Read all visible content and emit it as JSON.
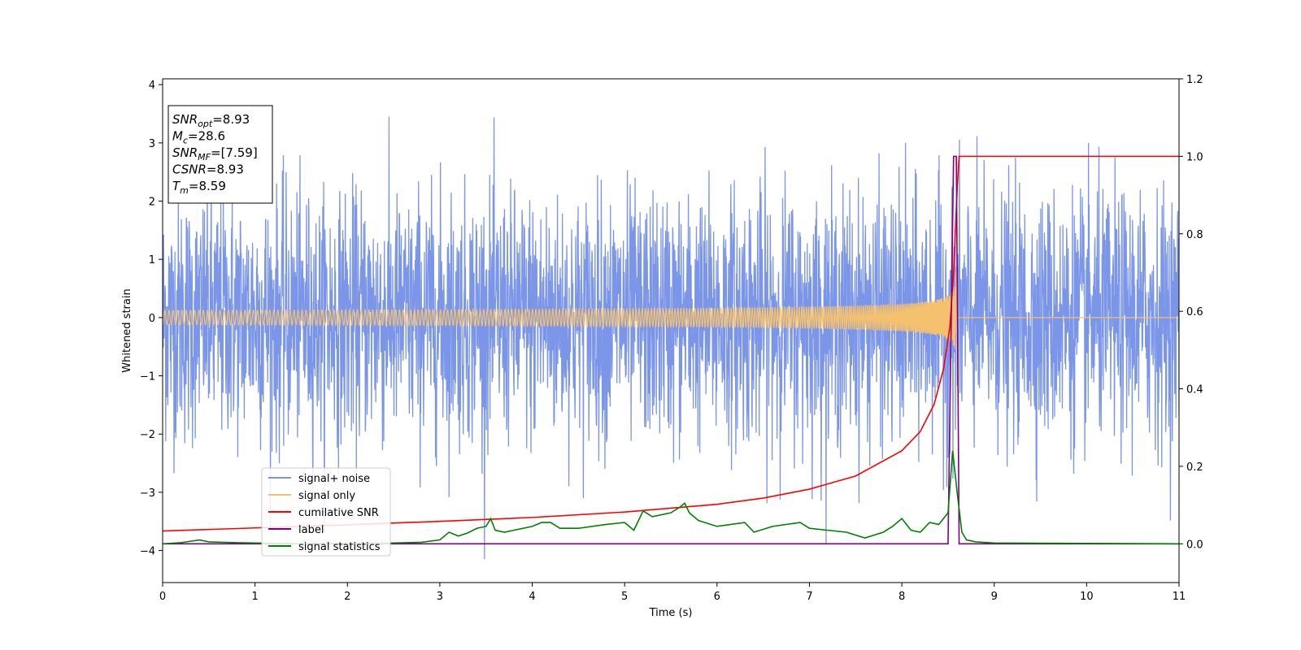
{
  "chart_data": {
    "type": "line",
    "xlabel": "Time (s)",
    "ylabel": "Whitened strain",
    "xlim": [
      0,
      11
    ],
    "ylim": [
      -4.55,
      4.1
    ],
    "y2lim": [
      -0.1,
      1.2
    ],
    "xticks": [
      0,
      1,
      2,
      3,
      4,
      5,
      6,
      7,
      8,
      9,
      10,
      11
    ],
    "yticks": [
      -4,
      -3,
      -2,
      -1,
      0,
      1,
      2,
      3,
      4
    ],
    "y2ticks": [
      0.0,
      0.2,
      0.4,
      0.6,
      0.8,
      1.0,
      1.2
    ],
    "grid": false,
    "legend_position": "lower-left",
    "annotation": {
      "lines": [
        {
          "main": "SNR",
          "sub": "opt",
          "value": "=8.93"
        },
        {
          "main": "M",
          "sub": "c",
          "value": "=28.6"
        },
        {
          "main": "SNR",
          "sub": "MF",
          "value": "=[7.59]"
        },
        {
          "main": "CSNR",
          "sub": "",
          "value": "=8.93"
        },
        {
          "main": "T",
          "sub": "m",
          "value": "=8.59"
        }
      ]
    },
    "merger_time": 8.59,
    "series": [
      {
        "name": "signal+ noise",
        "axis": "left",
        "color": "#7b96e8",
        "noise_std": 1.05,
        "description_points": {
          "x": [
            0,
            11
          ],
          "envelope_max": 3.7,
          "envelope_min": -4.15
        }
      },
      {
        "name": "signal only",
        "axis": "left",
        "color": "#f5c16e",
        "chirp": {
          "t_merge": 8.59,
          "amplitude_at_merge": 0.9,
          "amplitude_start": 0.02
        }
      },
      {
        "name": "cumilative SNR",
        "axis": "right",
        "color": "#ff0000",
        "x": [
          0,
          1,
          2,
          3,
          4,
          5,
          6,
          6.5,
          7,
          7.5,
          8,
          8.2,
          8.35,
          8.45,
          8.52,
          8.56,
          8.6,
          8.62,
          11
        ],
        "y": [
          0.033,
          0.041,
          0.049,
          0.058,
          0.068,
          0.082,
          0.102,
          0.118,
          0.141,
          0.175,
          0.24,
          0.29,
          0.36,
          0.45,
          0.56,
          0.7,
          0.92,
          1.0,
          1.0
        ]
      },
      {
        "name": "label",
        "axis": "right",
        "color": "#800080",
        "x": [
          0,
          8.5,
          8.56,
          8.59,
          8.62,
          11
        ],
        "y": [
          0.0,
          0.0,
          1.0,
          1.0,
          0.0,
          0.0
        ]
      },
      {
        "name": "signal statistics",
        "axis": "right",
        "color": "#008000",
        "x": [
          0,
          0.2,
          0.4,
          0.5,
          0.8,
          1.0,
          1.5,
          2.0,
          2.5,
          2.8,
          3.0,
          3.1,
          3.2,
          3.3,
          3.4,
          3.5,
          3.55,
          3.6,
          3.7,
          3.8,
          4.0,
          4.1,
          4.2,
          4.3,
          4.5,
          4.8,
          5.0,
          5.1,
          5.2,
          5.3,
          5.5,
          5.6,
          5.65,
          5.7,
          5.8,
          6.0,
          6.3,
          6.4,
          6.6,
          6.9,
          7.0,
          7.2,
          7.4,
          7.6,
          7.8,
          7.9,
          8.0,
          8.1,
          8.2,
          8.3,
          8.4,
          8.5,
          8.55,
          8.6,
          8.65,
          8.7,
          8.8,
          9.0,
          10.0,
          11.0
        ],
        "y": [
          0.0,
          0.003,
          0.01,
          0.005,
          0.003,
          0.002,
          0.0,
          0.001,
          0.002,
          0.004,
          0.01,
          0.03,
          0.02,
          0.028,
          0.04,
          0.045,
          0.065,
          0.035,
          0.03,
          0.035,
          0.045,
          0.055,
          0.055,
          0.04,
          0.04,
          0.05,
          0.055,
          0.035,
          0.085,
          0.07,
          0.08,
          0.095,
          0.105,
          0.08,
          0.06,
          0.045,
          0.055,
          0.03,
          0.045,
          0.055,
          0.04,
          0.035,
          0.03,
          0.015,
          0.03,
          0.045,
          0.065,
          0.035,
          0.03,
          0.055,
          0.05,
          0.08,
          0.24,
          0.13,
          0.03,
          0.01,
          0.005,
          0.002,
          0.001,
          0.0
        ]
      }
    ]
  }
}
